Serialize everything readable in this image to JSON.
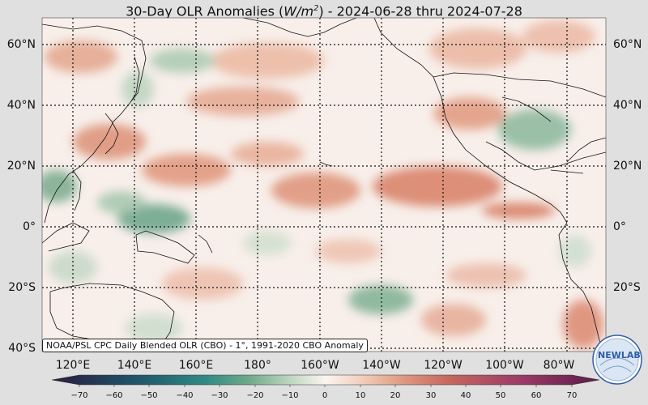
{
  "title": {
    "prefix": "30-Day OLR Anomalies (",
    "unit_base": "W/m",
    "unit_exp": "2",
    "suffix": ") - 2024-06-28 thru 2024-07-28"
  },
  "map": {
    "projection": "equirectangular",
    "lon_range": [
      110,
      290
    ],
    "lat_range": [
      -40,
      67
    ],
    "grid": "dotted black",
    "lat_labels": [
      "60°N",
      "40°N",
      "20°N",
      "0°",
      "20°S",
      "40°S"
    ],
    "lat_values": [
      60,
      40,
      20,
      0,
      -20,
      -40
    ],
    "lon_labels": [
      "120°E",
      "140°E",
      "160°E",
      "180°",
      "160°W",
      "140°W",
      "120°W",
      "100°W",
      "80°W"
    ],
    "lon_values": [
      120,
      140,
      160,
      180,
      200,
      220,
      240,
      260,
      280
    ]
  },
  "colorbar": {
    "ticks": [
      "−70",
      "−60",
      "−50",
      "−40",
      "−30",
      "−20",
      "−10",
      "0",
      "10",
      "20",
      "30",
      "40",
      "50",
      "60",
      "70"
    ],
    "tick_values": [
      -70,
      -60,
      -50,
      -40,
      -30,
      -20,
      -10,
      0,
      10,
      20,
      30,
      40,
      50,
      60,
      70
    ],
    "colors": {
      "neg_70": "#2b1a3e",
      "neg_50": "#1f6f78",
      "neg_30": "#5f9f7e",
      "neg_10": "#cfe0cc",
      "zero": "#fbf5f0",
      "pos_10": "#f0c8b4",
      "pos_30": "#d8826a",
      "pos_50": "#a84a6a",
      "pos_70": "#5a1a4a"
    }
  },
  "credit": "NOAA/PSL CPC Daily Blended OLR (CBO) - 1°, 1991-2020 CBO Anomaly",
  "logo": {
    "text": "NEWLAB",
    "icon": "noaa-newlab-logo-icon"
  }
}
